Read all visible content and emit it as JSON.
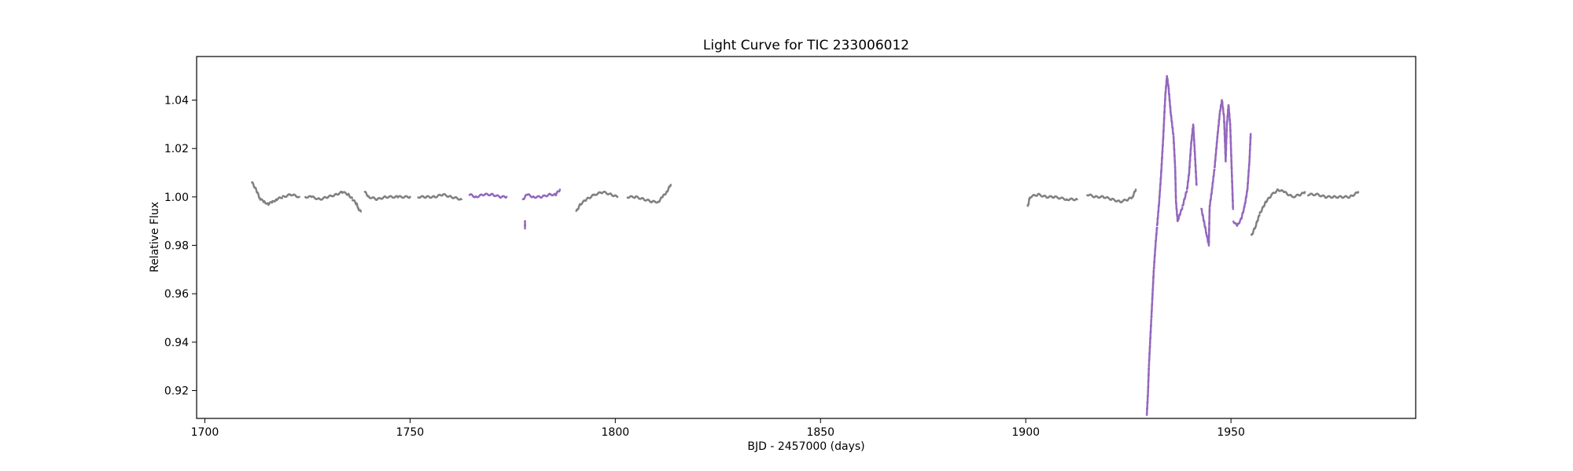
{
  "chart_data": {
    "type": "scatter",
    "title": "Light Curve for TIC 233006012",
    "xlabel": "BJD - 2457000 (days)",
    "ylabel": "Relative Flux",
    "xlim": [
      1698,
      1995
    ],
    "ylim": [
      0.9085,
      1.058
    ],
    "xticks": [
      1700,
      1750,
      1800,
      1850,
      1900,
      1950
    ],
    "yticks": [
      0.92,
      0.94,
      0.96,
      0.98,
      1.0,
      1.02,
      1.04
    ],
    "ytick_labels": [
      "0.92",
      "0.94",
      "0.96",
      "0.98",
      "1.00",
      "1.02",
      "1.04"
    ],
    "grid": false,
    "colors": {
      "normal": "#808080",
      "highlight": "#9467bd"
    },
    "series": [
      {
        "color_key": "normal",
        "segments": [
          [
            [
              1711.5,
              1.006
            ],
            [
              1712.5,
              1.003
            ],
            [
              1713.5,
              0.999
            ],
            [
              1714.5,
              0.998
            ],
            [
              1715.5,
              0.997
            ],
            [
              1716.5,
              0.998
            ],
            [
              1717.5,
              0.999
            ],
            [
              1719,
              1.0
            ],
            [
              1721,
              1.001
            ],
            [
              1723,
              1.0
            ]
          ],
          [
            [
              1724.5,
              1.0
            ],
            [
              1726,
              1.0
            ],
            [
              1728,
              0.999
            ],
            [
              1730,
              1.0
            ],
            [
              1732,
              1.001
            ],
            [
              1733.5,
              1.002
            ],
            [
              1735,
              1.001
            ],
            [
              1736,
              0.999
            ],
            [
              1737,
              0.997
            ],
            [
              1737.5,
              0.995
            ],
            [
              1738,
              0.994
            ]
          ],
          [
            [
              1739,
              1.002
            ],
            [
              1740,
              1.0
            ],
            [
              1742,
              0.999
            ],
            [
              1744,
              1.0
            ],
            [
              1747,
              1.0
            ],
            [
              1750,
              1.0
            ]
          ],
          [
            [
              1752,
              1.0
            ],
            [
              1754,
              1.0
            ],
            [
              1756,
              1.0
            ],
            [
              1758,
              1.001
            ],
            [
              1760,
              1.0
            ],
            [
              1762.5,
              0.999
            ]
          ],
          [
            [
              1790.5,
              0.994
            ],
            [
              1791.5,
              0.997
            ],
            [
              1793,
              0.999
            ],
            [
              1795,
              1.001
            ],
            [
              1797,
              1.002
            ],
            [
              1799,
              1.001
            ],
            [
              1800.5,
              1.0
            ]
          ],
          [
            [
              1803,
              1.0
            ],
            [
              1805,
              1.0
            ],
            [
              1807,
              0.999
            ],
            [
              1809,
              0.998
            ],
            [
              1810.5,
              0.998
            ],
            [
              1811.5,
              1.0
            ],
            [
              1812.5,
              1.002
            ],
            [
              1813.5,
              1.005
            ]
          ],
          [
            [
              1900.5,
              0.996
            ],
            [
              1901,
              1.0
            ],
            [
              1903,
              1.001
            ],
            [
              1905,
              1.0
            ],
            [
              1907,
              1.0
            ],
            [
              1910,
              0.999
            ],
            [
              1912.5,
              0.999
            ]
          ],
          [
            [
              1915,
              1.001
            ],
            [
              1917,
              1.0
            ],
            [
              1919,
              1.0
            ],
            [
              1921,
              0.999
            ],
            [
              1923,
              0.998
            ],
            [
              1925,
              0.999
            ],
            [
              1926,
              1.0
            ],
            [
              1926.8,
              1.003
            ]
          ],
          [
            [
              1955,
              0.984
            ],
            [
              1956,
              0.988
            ],
            [
              1957,
              0.993
            ],
            [
              1958.5,
              0.998
            ],
            [
              1960,
              1.001
            ],
            [
              1961.5,
              1.003
            ],
            [
              1963,
              1.002
            ],
            [
              1965,
              1.0
            ],
            [
              1967,
              1.001
            ],
            [
              1968,
              1.002
            ]
          ],
          [
            [
              1968.8,
              1.001
            ],
            [
              1971,
              1.001
            ],
            [
              1973,
              1.0
            ],
            [
              1975,
              1.0
            ],
            [
              1977,
              1.0
            ],
            [
              1979,
              1.0
            ],
            [
              1981,
              1.002
            ]
          ]
        ]
      },
      {
        "color_key": "highlight",
        "segments": [
          [
            [
              1764.5,
              1.001
            ],
            [
              1766,
              1.0
            ],
            [
              1768,
              1.001
            ],
            [
              1770,
              1.001
            ],
            [
              1772,
              1.0
            ],
            [
              1773.5,
              1.0
            ]
          ],
          [
            [
              1777.5,
              0.999
            ],
            [
              1778.5,
              1.001
            ],
            [
              1780,
              1.0
            ],
            [
              1782,
              1.0
            ],
            [
              1784,
              1.001
            ],
            [
              1785.5,
              1.001
            ],
            [
              1786.5,
              1.003
            ]
          ],
          [
            [
              1778,
              0.987
            ],
            [
              1778,
              0.99
            ]
          ],
          [
            [
              1929.5,
              0.91
            ],
            [
              1929.8,
              0.92
            ],
            [
              1930,
              0.93
            ],
            [
              1930.3,
              0.94
            ],
            [
              1930.6,
              0.95
            ],
            [
              1930.9,
              0.96
            ],
            [
              1931.2,
              0.97
            ],
            [
              1931.6,
              0.98
            ],
            [
              1932,
              0.988
            ],
            [
              1932.5,
              0.998
            ],
            [
              1933,
              1.01
            ],
            [
              1933.5,
              1.025
            ],
            [
              1934,
              1.042
            ],
            [
              1934.4,
              1.05
            ],
            [
              1934.8,
              1.045
            ],
            [
              1935.3,
              1.035
            ],
            [
              1936,
              1.025
            ],
            [
              1936.4,
              1.012
            ],
            [
              1936.6,
              0.998
            ],
            [
              1937,
              0.99
            ],
            [
              1937.6,
              0.993
            ],
            [
              1938.2,
              0.996
            ],
            [
              1938.8,
              1.0
            ],
            [
              1939.3,
              1.003
            ],
            [
              1939.8,
              1.01
            ],
            [
              1940.3,
              1.022
            ],
            [
              1940.8,
              1.03
            ],
            [
              1941.2,
              1.018
            ],
            [
              1941.6,
              1.005
            ]
          ],
          [
            [
              1942.8,
              0.995
            ],
            [
              1944,
              0.985
            ],
            [
              1944.6,
              0.98
            ],
            [
              1944.8,
              0.996
            ],
            [
              1945.3,
              1.002
            ],
            [
              1946,
              1.012
            ],
            [
              1946.7,
              1.025
            ],
            [
              1947.3,
              1.035
            ],
            [
              1947.8,
              1.04
            ],
            [
              1948.3,
              1.033
            ],
            [
              1948.7,
              1.015
            ],
            [
              1949,
              1.03
            ],
            [
              1949.4,
              1.038
            ],
            [
              1949.8,
              1.03
            ],
            [
              1950.2,
              1.01
            ],
            [
              1950.5,
              0.995
            ]
          ],
          [
            [
              1950.6,
              0.99
            ],
            [
              1951.5,
              0.988
            ],
            [
              1952.5,
              0.991
            ],
            [
              1953.3,
              0.996
            ],
            [
              1954,
              1.003
            ],
            [
              1954.5,
              1.015
            ],
            [
              1954.8,
              1.026
            ]
          ]
        ]
      }
    ]
  }
}
